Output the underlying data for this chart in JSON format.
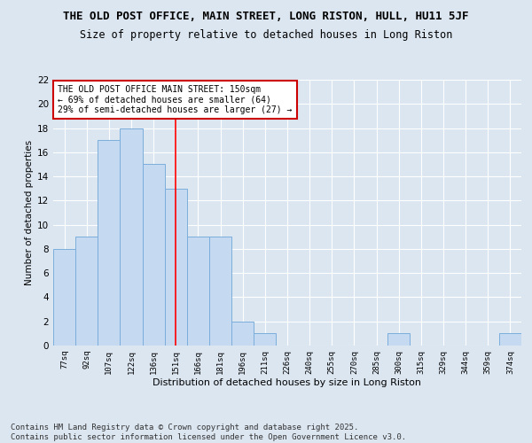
{
  "title": "THE OLD POST OFFICE, MAIN STREET, LONG RISTON, HULL, HU11 5JF",
  "subtitle": "Size of property relative to detached houses in Long Riston",
  "xlabel": "Distribution of detached houses by size in Long Riston",
  "ylabel": "Number of detached properties",
  "bin_labels": [
    "77sq",
    "92sq",
    "107sq",
    "122sq",
    "136sq",
    "151sq",
    "166sq",
    "181sq",
    "196sq",
    "211sq",
    "226sq",
    "240sq",
    "255sq",
    "270sq",
    "285sq",
    "300sq",
    "315sq",
    "329sq",
    "344sq",
    "359sq",
    "374sq"
  ],
  "bar_values": [
    8,
    9,
    17,
    18,
    15,
    13,
    9,
    9,
    2,
    1,
    0,
    0,
    0,
    0,
    0,
    1,
    0,
    0,
    0,
    0,
    1
  ],
  "bar_color": "#c5d9f1",
  "bar_edge_color": "#7aaedc",
  "reference_line_x": 5,
  "annotation_text": "THE OLD POST OFFICE MAIN STREET: 150sqm\n← 69% of detached houses are smaller (64)\n29% of semi-detached houses are larger (27) →",
  "annotation_box_color": "#ffffff",
  "annotation_box_edge": "#cc0000",
  "ylim": [
    0,
    22
  ],
  "yticks": [
    0,
    2,
    4,
    6,
    8,
    10,
    12,
    14,
    16,
    18,
    20,
    22
  ],
  "bg_color": "#dce6f1",
  "plot_bg_color": "#dce6f1",
  "footer_text": "Contains HM Land Registry data © Crown copyright and database right 2025.\nContains public sector information licensed under the Open Government Licence v3.0.",
  "title_fontsize": 9,
  "subtitle_fontsize": 8.5,
  "annotation_fontsize": 7,
  "footer_fontsize": 6.5,
  "ylabel_fontsize": 7.5,
  "xlabel_fontsize": 8,
  "ytick_fontsize": 7.5,
  "xtick_fontsize": 6.5
}
